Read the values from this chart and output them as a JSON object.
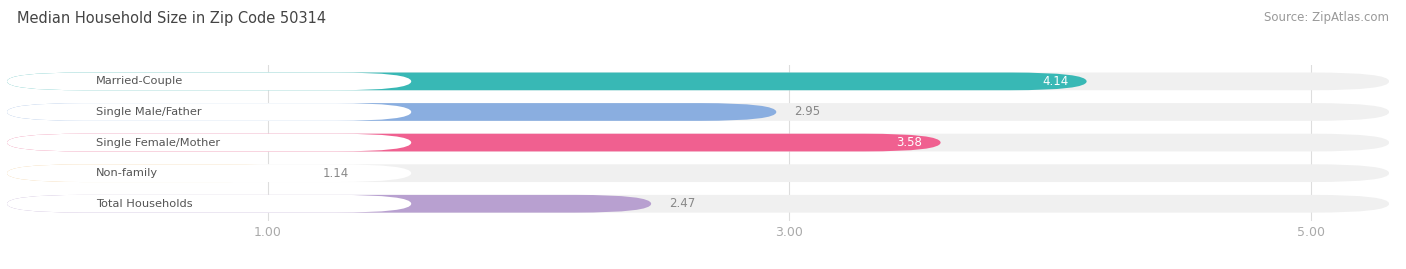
{
  "title": "Median Household Size in Zip Code 50314",
  "source": "Source: ZipAtlas.com",
  "categories": [
    "Married-Couple",
    "Single Male/Father",
    "Single Female/Mother",
    "Non-family",
    "Total Households"
  ],
  "values": [
    4.14,
    2.95,
    3.58,
    1.14,
    2.47
  ],
  "bar_colors": [
    "#38b8b5",
    "#8aaee0",
    "#f06090",
    "#f5c98a",
    "#b8a0d0"
  ],
  "dot_colors": [
    "#38b8b5",
    "#8aaee0",
    "#f06090",
    "#f5c98a",
    "#b8a0d0"
  ],
  "text_colors": [
    "#666633",
    "#555577",
    "#554444",
    "#886633",
    "#555566"
  ],
  "xlim_min": 0,
  "xlim_max": 5.3,
  "xticks": [
    1.0,
    3.0,
    5.0
  ],
  "title_fontsize": 10.5,
  "source_fontsize": 8.5,
  "bar_height": 0.58,
  "background_color": "#ffffff",
  "bar_background_color": "#f0f0f0",
  "value_label_inside": [
    true,
    false,
    true,
    false,
    false
  ],
  "value_label_color_inside": "#ffffff",
  "value_label_color_outside": "#888888"
}
